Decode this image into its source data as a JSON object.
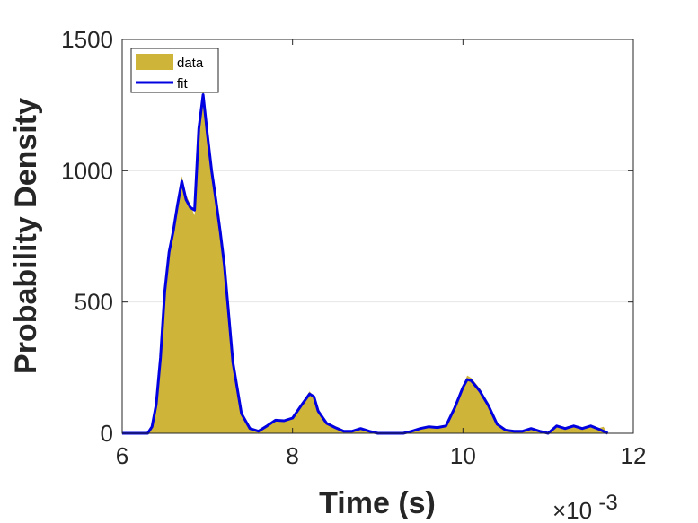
{
  "chart_data": {
    "type": "area",
    "title": "",
    "xlabel": "Time (s)",
    "ylabel": "Probability Density",
    "x_exponent_label": "×10",
    "x_exponent_power": "-3",
    "xlim": [
      0.006,
      0.012
    ],
    "ylim": [
      0,
      1500
    ],
    "x_ticks": [
      0.006,
      0.008,
      0.01,
      0.012
    ],
    "x_tick_labels": [
      "6",
      "8",
      "10",
      "12"
    ],
    "y_ticks": [
      0,
      500,
      1000,
      1500
    ],
    "y_tick_labels": [
      "0",
      "500",
      "1000",
      "1500"
    ],
    "grid": "horizontal",
    "legend_position": "top-left",
    "colors": {
      "data": "#CFB43A",
      "fit": "#0000E0",
      "axis": "#262626",
      "grid": "#E6E6E6"
    },
    "series": [
      {
        "name": "data",
        "kind": "area",
        "x": [
          0.006,
          0.0063,
          0.00635,
          0.0064,
          0.00645,
          0.0065,
          0.00655,
          0.0066,
          0.00665,
          0.0067,
          0.00675,
          0.0068,
          0.00685,
          0.0069,
          0.00695,
          0.007,
          0.00705,
          0.0071,
          0.00715,
          0.0072,
          0.0073,
          0.0074,
          0.0075,
          0.0076,
          0.0077,
          0.0078,
          0.0079,
          0.008,
          0.0081,
          0.0082,
          0.00825,
          0.0083,
          0.0084,
          0.0085,
          0.0086,
          0.0087,
          0.0088,
          0.0089,
          0.009,
          0.0091,
          0.0092,
          0.0093,
          0.0094,
          0.0095,
          0.0096,
          0.0097,
          0.0098,
          0.0099,
          0.01,
          0.01005,
          0.0101,
          0.0102,
          0.0103,
          0.0104,
          0.0105,
          0.0106,
          0.0107,
          0.0108,
          0.0109,
          0.011,
          0.0111,
          0.0112,
          0.0113,
          0.0114,
          0.0115,
          0.0116,
          0.01165,
          0.0117
        ],
        "y": [
          0,
          0,
          30,
          120,
          300,
          550,
          700,
          780,
          880,
          980,
          910,
          870,
          830,
          1170,
          1310,
          1150,
          1010,
          900,
          780,
          650,
          280,
          80,
          20,
          10,
          30,
          50,
          50,
          60,
          110,
          160,
          140,
          90,
          40,
          25,
          10,
          10,
          20,
          10,
          0,
          0,
          0,
          0,
          10,
          20,
          30,
          25,
          30,
          100,
          180,
          220,
          210,
          170,
          110,
          40,
          15,
          10,
          10,
          20,
          10,
          0,
          30,
          20,
          30,
          20,
          30,
          20,
          25,
          0
        ]
      },
      {
        "name": "fit",
        "kind": "line",
        "x": [
          0.006,
          0.0063,
          0.00635,
          0.0064,
          0.00645,
          0.0065,
          0.00655,
          0.0066,
          0.00665,
          0.0067,
          0.00675,
          0.0068,
          0.00685,
          0.0069,
          0.00695,
          0.007,
          0.00705,
          0.0071,
          0.00715,
          0.0072,
          0.0073,
          0.0074,
          0.0075,
          0.0076,
          0.0077,
          0.0078,
          0.0079,
          0.008,
          0.0081,
          0.0082,
          0.00825,
          0.0083,
          0.0084,
          0.0085,
          0.0086,
          0.0087,
          0.0088,
          0.0089,
          0.009,
          0.0091,
          0.0092,
          0.0093,
          0.0094,
          0.0095,
          0.0096,
          0.0097,
          0.0098,
          0.0099,
          0.01,
          0.01005,
          0.0101,
          0.0102,
          0.0103,
          0.0104,
          0.0105,
          0.0106,
          0.0107,
          0.0108,
          0.0109,
          0.011,
          0.0111,
          0.0112,
          0.0113,
          0.0114,
          0.0115,
          0.0116,
          0.0117
        ],
        "y": [
          0,
          0,
          25,
          110,
          290,
          540,
          690,
          770,
          870,
          960,
          890,
          860,
          850,
          1160,
          1290,
          1140,
          1000,
          890,
          770,
          640,
          270,
          75,
          18,
          8,
          28,
          50,
          48,
          58,
          105,
          150,
          140,
          85,
          38,
          22,
          8,
          8,
          18,
          8,
          0,
          0,
          0,
          0,
          8,
          18,
          25,
          22,
          28,
          95,
          175,
          205,
          200,
          160,
          105,
          35,
          12,
          8,
          8,
          18,
          8,
          0,
          28,
          18,
          28,
          18,
          28,
          15,
          0
        ]
      }
    ]
  }
}
